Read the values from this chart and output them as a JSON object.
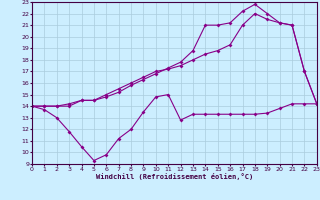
{
  "xlabel": "Windchill (Refroidissement éolien,°C)",
  "bg_color": "#cceeff",
  "grid_color": "#aaccdd",
  "line_color": "#880088",
  "xmin": 0,
  "xmax": 23,
  "ymin": 9,
  "ymax": 23,
  "series1_x": [
    0,
    1,
    2,
    3,
    4,
    5,
    6,
    7,
    8,
    9,
    10,
    11,
    12,
    13,
    14,
    15,
    16,
    17,
    18,
    19,
    20,
    21,
    22,
    23
  ],
  "series1_y": [
    14.0,
    13.7,
    13.0,
    11.8,
    10.5,
    9.3,
    9.8,
    11.2,
    12.0,
    13.5,
    14.8,
    15.0,
    12.8,
    13.3,
    13.3,
    13.3,
    13.3,
    13.3,
    13.3,
    13.4,
    13.8,
    14.2,
    14.2,
    14.2
  ],
  "series2_x": [
    0,
    1,
    2,
    3,
    4,
    5,
    6,
    7,
    8,
    9,
    10,
    11,
    12,
    13,
    14,
    15,
    16,
    17,
    18,
    19,
    20,
    21,
    22,
    23
  ],
  "series2_y": [
    14.0,
    14.0,
    14.0,
    14.0,
    14.5,
    14.5,
    14.8,
    15.2,
    15.8,
    16.3,
    16.8,
    17.3,
    17.8,
    18.8,
    21.0,
    21.0,
    21.2,
    22.2,
    22.8,
    22.0,
    21.2,
    21.0,
    17.0,
    14.2
  ],
  "series3_x": [
    0,
    1,
    2,
    3,
    4,
    5,
    6,
    7,
    8,
    9,
    10,
    11,
    12,
    13,
    14,
    15,
    16,
    17,
    18,
    19,
    20,
    21,
    22,
    23
  ],
  "series3_y": [
    14.0,
    14.0,
    14.0,
    14.2,
    14.5,
    14.5,
    15.0,
    15.5,
    16.0,
    16.5,
    17.0,
    17.2,
    17.5,
    18.0,
    18.5,
    18.8,
    19.3,
    21.0,
    22.0,
    21.5,
    21.2,
    21.0,
    17.0,
    14.2
  ]
}
